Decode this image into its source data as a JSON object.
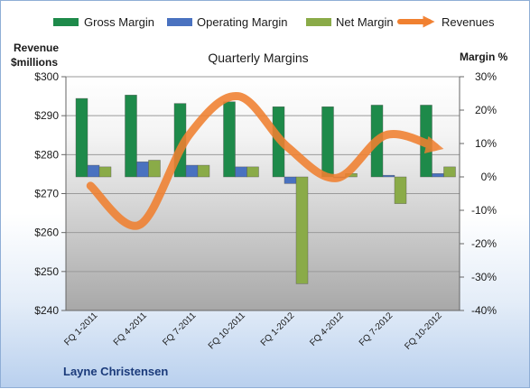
{
  "chart_data": {
    "type": "bar",
    "title": "Quarterly Margins",
    "categories": [
      "FQ 1-2011",
      "FQ 4-2011",
      "FQ 7-2011",
      "FQ 10-2011",
      "FQ 1-2012",
      "FQ 4-2012",
      "FQ 7-2012",
      "FQ 10-2012"
    ],
    "series": [
      {
        "name": "Gross Margin",
        "axis": "right",
        "kind": "bar",
        "color": "#1e8a4a",
        "values": [
          23.5,
          24.5,
          22,
          22.5,
          21,
          21,
          21.5,
          21.5
        ]
      },
      {
        "name": "Operating Margin",
        "axis": "right",
        "kind": "bar",
        "color": "#4a72c0",
        "values": [
          3.5,
          4.5,
          3.5,
          3,
          -2,
          0,
          0.5,
          1
        ]
      },
      {
        "name": "Net Margin",
        "axis": "right",
        "kind": "bar",
        "color": "#8aab48",
        "values": [
          3,
          5,
          3.5,
          3,
          -32,
          1,
          -8,
          3
        ]
      },
      {
        "name": "Revenues",
        "axis": "left",
        "kind": "line",
        "color": "#f08030",
        "values": [
          272,
          262,
          285,
          295,
          282,
          274,
          285,
          282
        ]
      }
    ],
    "y_left": {
      "label_line1": "Revenue",
      "label_line2": "$millions",
      "min": 240,
      "max": 300,
      "ticks": [
        "$240",
        "$250",
        "$260",
        "$270",
        "$280",
        "$290",
        "$300"
      ]
    },
    "y_right": {
      "label": "Margin %",
      "min": -40,
      "max": 30,
      "ticks": [
        "-40%",
        "-30%",
        "-20%",
        "-10%",
        "0%",
        "10%",
        "20%",
        "30%"
      ]
    },
    "grid": true,
    "legend_position": "top"
  },
  "footer": {
    "author": "Layne Christensen"
  }
}
